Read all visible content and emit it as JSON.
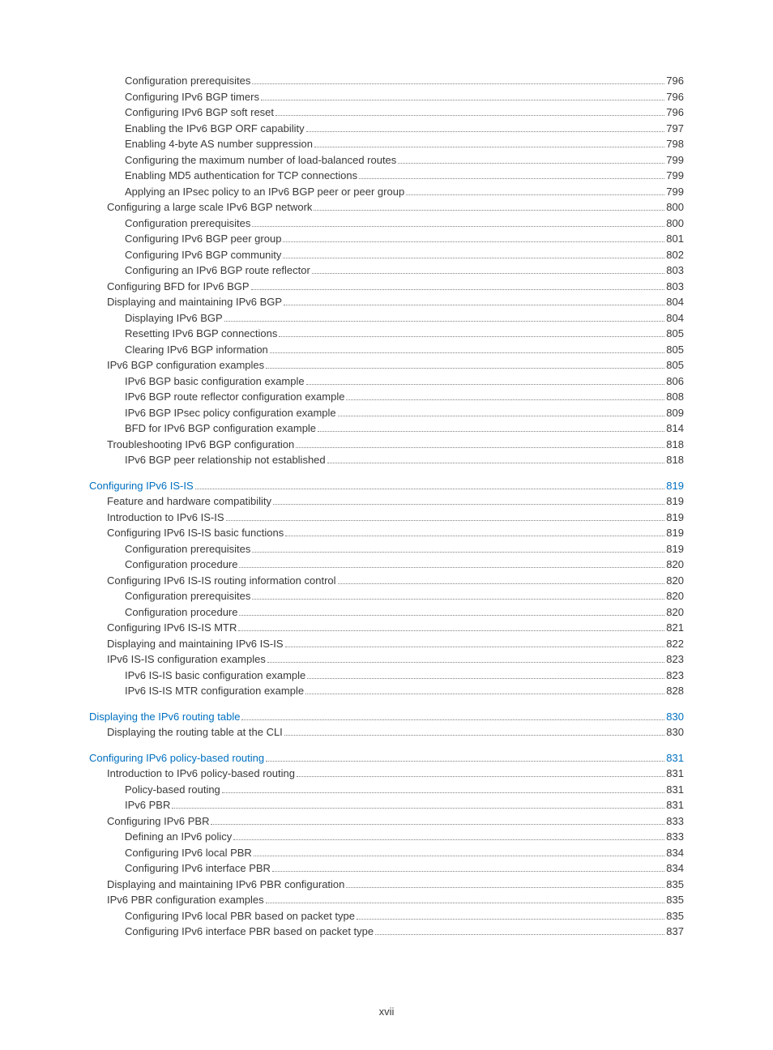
{
  "colors": {
    "text": "#393939",
    "link": "#0070c0",
    "dots": "#808080",
    "background": "#ffffff"
  },
  "typography": {
    "font_family": "Helvetica Neue, Helvetica, Arial, sans-serif",
    "font_size_pt": 10,
    "line_height": 1.5
  },
  "page_number_label": "xvii",
  "entries": [
    {
      "indent": 2,
      "label": "Configuration prerequisites",
      "page": "796",
      "link": false,
      "gap": false
    },
    {
      "indent": 2,
      "label": "Configuring IPv6 BGP timers",
      "page": "796",
      "link": false,
      "gap": false
    },
    {
      "indent": 2,
      "label": "Configuring IPv6 BGP soft reset",
      "page": "796",
      "link": false,
      "gap": false
    },
    {
      "indent": 2,
      "label": "Enabling the IPv6 BGP ORF capability",
      "page": "797",
      "link": false,
      "gap": false
    },
    {
      "indent": 2,
      "label": "Enabling 4-byte AS number suppression",
      "page": "798",
      "link": false,
      "gap": false
    },
    {
      "indent": 2,
      "label": "Configuring the maximum number of load-balanced routes",
      "page": "799",
      "link": false,
      "gap": false
    },
    {
      "indent": 2,
      "label": "Enabling MD5 authentication for TCP connections",
      "page": "799",
      "link": false,
      "gap": false
    },
    {
      "indent": 2,
      "label": "Applying an IPsec policy to an IPv6 BGP peer or peer group",
      "page": "799",
      "link": false,
      "gap": false
    },
    {
      "indent": 1,
      "label": "Configuring a large scale IPv6 BGP network",
      "page": "800",
      "link": false,
      "gap": false
    },
    {
      "indent": 2,
      "label": "Configuration prerequisites",
      "page": "800",
      "link": false,
      "gap": false
    },
    {
      "indent": 2,
      "label": "Configuring IPv6 BGP peer group",
      "page": "801",
      "link": false,
      "gap": false
    },
    {
      "indent": 2,
      "label": "Configuring IPv6 BGP community",
      "page": "802",
      "link": false,
      "gap": false
    },
    {
      "indent": 2,
      "label": "Configuring an IPv6 BGP route reflector",
      "page": "803",
      "link": false,
      "gap": false
    },
    {
      "indent": 1,
      "label": "Configuring BFD for IPv6 BGP",
      "page": "803",
      "link": false,
      "gap": false
    },
    {
      "indent": 1,
      "label": "Displaying and maintaining IPv6 BGP",
      "page": "804",
      "link": false,
      "gap": false
    },
    {
      "indent": 2,
      "label": "Displaying IPv6 BGP",
      "page": "804",
      "link": false,
      "gap": false
    },
    {
      "indent": 2,
      "label": "Resetting IPv6 BGP connections",
      "page": "805",
      "link": false,
      "gap": false
    },
    {
      "indent": 2,
      "label": "Clearing IPv6 BGP information",
      "page": "805",
      "link": false,
      "gap": false
    },
    {
      "indent": 1,
      "label": "IPv6 BGP configuration examples",
      "page": "805",
      "link": false,
      "gap": false
    },
    {
      "indent": 2,
      "label": "IPv6 BGP basic configuration example",
      "page": "806",
      "link": false,
      "gap": false
    },
    {
      "indent": 2,
      "label": "IPv6 BGP route reflector configuration example",
      "page": "808",
      "link": false,
      "gap": false
    },
    {
      "indent": 2,
      "label": "IPv6 BGP IPsec policy configuration example",
      "page": "809",
      "link": false,
      "gap": false
    },
    {
      "indent": 2,
      "label": "BFD for IPv6 BGP configuration example",
      "page": "814",
      "link": false,
      "gap": false
    },
    {
      "indent": 1,
      "label": "Troubleshooting IPv6 BGP configuration",
      "page": "818",
      "link": false,
      "gap": false
    },
    {
      "indent": 2,
      "label": "IPv6 BGP peer relationship not established",
      "page": "818",
      "link": false,
      "gap": false
    },
    {
      "indent": 0,
      "label": "Configuring IPv6 IS-IS",
      "page": "819",
      "link": true,
      "gap": true
    },
    {
      "indent": 1,
      "label": "Feature and hardware compatibility",
      "page": "819",
      "link": false,
      "gap": false
    },
    {
      "indent": 1,
      "label": "Introduction to IPv6 IS-IS",
      "page": "819",
      "link": false,
      "gap": false
    },
    {
      "indent": 1,
      "label": "Configuring IPv6 IS-IS basic functions",
      "page": "819",
      "link": false,
      "gap": false
    },
    {
      "indent": 2,
      "label": "Configuration prerequisites",
      "page": "819",
      "link": false,
      "gap": false
    },
    {
      "indent": 2,
      "label": "Configuration procedure",
      "page": "820",
      "link": false,
      "gap": false
    },
    {
      "indent": 1,
      "label": "Configuring IPv6 IS-IS routing information control",
      "page": "820",
      "link": false,
      "gap": false
    },
    {
      "indent": 2,
      "label": "Configuration prerequisites",
      "page": "820",
      "link": false,
      "gap": false
    },
    {
      "indent": 2,
      "label": "Configuration procedure",
      "page": "820",
      "link": false,
      "gap": false
    },
    {
      "indent": 1,
      "label": "Configuring IPv6 IS-IS MTR",
      "page": "821",
      "link": false,
      "gap": false
    },
    {
      "indent": 1,
      "label": "Displaying and maintaining IPv6 IS-IS",
      "page": "822",
      "link": false,
      "gap": false
    },
    {
      "indent": 1,
      "label": "IPv6 IS-IS configuration examples",
      "page": "823",
      "link": false,
      "gap": false
    },
    {
      "indent": 2,
      "label": "IPv6 IS-IS basic configuration example",
      "page": "823",
      "link": false,
      "gap": false
    },
    {
      "indent": 2,
      "label": "IPv6 IS-IS MTR configuration example",
      "page": "828",
      "link": false,
      "gap": false
    },
    {
      "indent": 0,
      "label": "Displaying the IPv6 routing table",
      "page": "830",
      "link": true,
      "gap": true
    },
    {
      "indent": 1,
      "label": "Displaying the routing table at the CLI",
      "page": "830",
      "link": false,
      "gap": false
    },
    {
      "indent": 0,
      "label": "Configuring IPv6 policy-based routing",
      "page": "831",
      "link": true,
      "gap": true
    },
    {
      "indent": 1,
      "label": "Introduction to IPv6 policy-based routing",
      "page": "831",
      "link": false,
      "gap": false
    },
    {
      "indent": 2,
      "label": "Policy-based routing",
      "page": "831",
      "link": false,
      "gap": false
    },
    {
      "indent": 2,
      "label": "IPv6 PBR",
      "page": "831",
      "link": false,
      "gap": false
    },
    {
      "indent": 1,
      "label": "Configuring IPv6 PBR",
      "page": "833",
      "link": false,
      "gap": false
    },
    {
      "indent": 2,
      "label": "Defining an IPv6 policy",
      "page": "833",
      "link": false,
      "gap": false
    },
    {
      "indent": 2,
      "label": "Configuring IPv6 local PBR",
      "page": "834",
      "link": false,
      "gap": false
    },
    {
      "indent": 2,
      "label": "Configuring IPv6 interface PBR",
      "page": "834",
      "link": false,
      "gap": false
    },
    {
      "indent": 1,
      "label": "Displaying and maintaining IPv6 PBR configuration",
      "page": "835",
      "link": false,
      "gap": false
    },
    {
      "indent": 1,
      "label": "IPv6 PBR configuration examples",
      "page": "835",
      "link": false,
      "gap": false
    },
    {
      "indent": 2,
      "label": "Configuring IPv6 local PBR based on packet type",
      "page": "835",
      "link": false,
      "gap": false
    },
    {
      "indent": 2,
      "label": "Configuring IPv6 interface PBR based on packet type",
      "page": "837",
      "link": false,
      "gap": false
    }
  ]
}
